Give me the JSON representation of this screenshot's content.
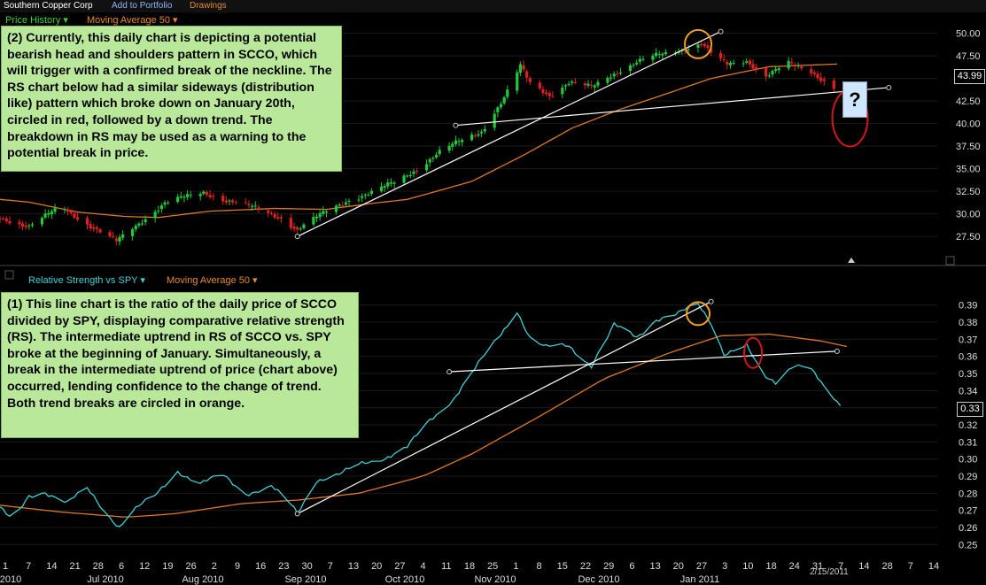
{
  "topbar": {
    "symbol_name": "Southern Copper Corp",
    "add_to_portfolio": "Add to Portfolio",
    "drawings": "Drawings"
  },
  "colors": {
    "bg": "#000000",
    "up_candle": "#22c83a",
    "down_candle": "#e02020",
    "ma": "#e07820",
    "rs_line": "#3fd0d6",
    "trendline": "#ffffff",
    "note_bg": "#b9e89a",
    "circle_orange": "#f0a020",
    "circle_red": "#d01818"
  },
  "upper_panel": {
    "legend_price": "Price History",
    "legend_ma": "Moving Average 50",
    "last_price": "43.99",
    "question_mark": "?",
    "note": "(2)  Currently, this daily chart is depicting a potential bearish head and shoulders pattern in SCCO, which will trigger with a confirmed break of the neckline. The RS chart below had a similar sideways (distribution like) pattern which broke down on January 20th, circled in red, followed by a down trend. The breakdown in RS may be used as a  warning to the potential break in price."
  },
  "lower_panel": {
    "legend_rs": "Relative Strength vs SPY",
    "legend_ma": "Moving Average 50",
    "last_value": "0.33",
    "note": "(1)  This line chart is the ratio of the daily price of SCCO divided by SPY, displaying comparative relative strength (RS). The intermediate uptrend in RS of SCCO vs. SPY broke at the beginning of January. Simultaneously, a break in the intermediate uptrend of price (chart above) occurred, lending confidence to the change of trend. Both trend breaks are circled in orange."
  },
  "x_axis": {
    "last_date_label": "2/15/2011",
    "day_ticks": [
      "1",
      "7",
      "14",
      "21",
      "28",
      "6",
      "12",
      "19",
      "26",
      "2",
      "9",
      "16",
      "23",
      "30",
      "7",
      "13",
      "20",
      "27",
      "4",
      "11",
      "18",
      "25",
      "1",
      "8",
      "15",
      "22",
      "29",
      "6",
      "13",
      "20",
      "27",
      "3",
      "10",
      "18",
      "24",
      "31",
      "7",
      "14",
      "28",
      "7",
      "14"
    ],
    "month_labels": [
      "2010",
      "Jul 2010",
      "Aug 2010",
      "Sep 2010",
      "Oct 2010",
      "Nov 2010",
      "Dec 2010",
      "Jan 2011"
    ]
  },
  "chart_data": [
    {
      "type": "candlestick",
      "title": "Price History",
      "y_ticks": [
        "50.00",
        "47.50",
        "45.00",
        "42.50",
        "40.00",
        "37.50",
        "35.00",
        "32.50",
        "30.00",
        "27.50"
      ],
      "ylim": [
        25.75,
        50.75
      ],
      "x_range": [
        "2010-06-01",
        "2011-03-18"
      ],
      "series": [
        {
          "name": "Price History",
          "type": "candlestick",
          "anchors_close": [
            [
              "2010-06-01",
              29.6
            ],
            [
              "2010-06-10",
              28.6
            ],
            [
              "2010-06-20",
              30.8
            ],
            [
              "2010-07-01",
              28.2
            ],
            [
              "2010-07-07",
              26.9
            ],
            [
              "2010-07-14",
              29.0
            ],
            [
              "2010-07-22",
              31.2
            ],
            [
              "2010-08-03",
              32.4
            ],
            [
              "2010-08-10",
              31.5
            ],
            [
              "2010-08-20",
              30.5
            ],
            [
              "2010-08-27",
              29.6
            ],
            [
              "2010-09-01",
              28.2
            ],
            [
              "2010-09-10",
              30.3
            ],
            [
              "2010-09-17",
              31.6
            ],
            [
              "2010-09-24",
              32.3
            ],
            [
              "2010-10-01",
              33.5
            ],
            [
              "2010-10-08",
              35.0
            ],
            [
              "2010-10-15",
              36.8
            ],
            [
              "2010-10-21",
              38.0
            ],
            [
              "2010-10-28",
              39.2
            ],
            [
              "2010-11-04",
              42.8
            ],
            [
              "2010-11-09",
              46.3
            ],
            [
              "2010-11-12",
              44.5
            ],
            [
              "2010-11-18",
              43.2
            ],
            [
              "2010-11-24",
              44.5
            ],
            [
              "2010-12-01",
              44.0
            ],
            [
              "2010-12-08",
              45.6
            ],
            [
              "2010-12-15",
              46.8
            ],
            [
              "2010-12-22",
              47.6
            ],
            [
              "2010-12-29",
              48.2
            ],
            [
              "2011-01-04",
              48.9
            ],
            [
              "2011-01-08",
              47.4
            ],
            [
              "2011-01-12",
              46.5
            ],
            [
              "2011-01-18",
              47.0
            ],
            [
              "2011-01-24",
              45.3
            ],
            [
              "2011-01-31",
              46.6
            ],
            [
              "2011-02-07",
              45.8
            ],
            [
              "2011-02-14",
              44.0
            ]
          ]
        },
        {
          "name": "Moving Average 50",
          "type": "line",
          "anchors": [
            [
              "2010-06-01",
              31.6
            ],
            [
              "2010-06-10",
              31.3
            ],
            [
              "2010-06-25",
              30.2
            ],
            [
              "2010-07-10",
              29.7
            ],
            [
              "2010-07-20",
              29.6
            ],
            [
              "2010-08-05",
              30.3
            ],
            [
              "2010-08-25",
              30.6
            ],
            [
              "2010-09-10",
              30.5
            ],
            [
              "2010-09-25",
              31.2
            ],
            [
              "2010-10-05",
              31.6
            ],
            [
              "2010-10-25",
              33.6
            ],
            [
              "2010-11-10",
              36.5
            ],
            [
              "2010-11-25",
              39.5
            ],
            [
              "2010-12-10",
              41.6
            ],
            [
              "2010-12-25",
              43.4
            ],
            [
              "2011-01-07",
              45.0
            ],
            [
              "2011-01-25",
              46.3
            ],
            [
              "2011-02-15",
              46.6
            ]
          ]
        }
      ],
      "trendlines": [
        {
          "from": [
            "2010-09-01",
            27.5
          ],
          "to": [
            "2011-01-10",
            50.2
          ]
        },
        {
          "from": [
            "2010-10-20",
            39.8
          ],
          "to": [
            "2011-03-03",
            43.99
          ]
        }
      ],
      "annotations": [
        {
          "shape": "circle",
          "color": "orange",
          "at": [
            "2011-01-03",
            48.8
          ]
        },
        {
          "shape": "circle",
          "color": "red",
          "at": [
            "2011-02-19",
            40.6
          ]
        }
      ]
    },
    {
      "type": "line",
      "title": "Relative Strength vs SPY",
      "y_ticks": [
        "0.39",
        "0.38",
        "0.37",
        "0.36",
        "0.35",
        "0.34",
        "0.33",
        "0.32",
        "0.31",
        "0.30",
        "0.29",
        "0.28",
        "0.27",
        "0.26",
        "0.25"
      ],
      "ylim": [
        0.245,
        0.395
      ],
      "x_range": [
        "2010-06-01",
        "2011-03-18"
      ],
      "series": [
        {
          "name": "Relative Strength vs SPY",
          "anchors": [
            [
              "2010-06-01",
              0.272
            ],
            [
              "2010-06-05",
              0.263
            ],
            [
              "2010-06-10",
              0.278
            ],
            [
              "2010-06-15",
              0.281
            ],
            [
              "2010-06-22",
              0.275
            ],
            [
              "2010-06-28",
              0.282
            ],
            [
              "2010-07-05",
              0.266
            ],
            [
              "2010-07-08",
              0.261
            ],
            [
              "2010-07-12",
              0.27
            ],
            [
              "2010-07-19",
              0.278
            ],
            [
              "2010-07-26",
              0.293
            ],
            [
              "2010-08-02",
              0.286
            ],
            [
              "2010-08-09",
              0.29
            ],
            [
              "2010-08-16",
              0.28
            ],
            [
              "2010-08-24",
              0.284
            ],
            [
              "2010-08-30",
              0.273
            ],
            [
              "2010-09-01",
              0.268
            ],
            [
              "2010-09-07",
              0.288
            ],
            [
              "2010-09-14",
              0.291
            ],
            [
              "2010-09-21",
              0.297
            ],
            [
              "2010-09-28",
              0.301
            ],
            [
              "2010-10-05",
              0.307
            ],
            [
              "2010-10-12",
              0.322
            ],
            [
              "2010-10-19",
              0.335
            ],
            [
              "2010-10-26",
              0.353
            ],
            [
              "2010-11-02",
              0.37
            ],
            [
              "2010-11-08",
              0.387
            ],
            [
              "2010-11-12",
              0.371
            ],
            [
              "2010-11-17",
              0.365
            ],
            [
              "2010-11-24",
              0.366
            ],
            [
              "2010-12-01",
              0.355
            ],
            [
              "2010-12-08",
              0.378
            ],
            [
              "2010-12-15",
              0.371
            ],
            [
              "2010-12-21",
              0.382
            ],
            [
              "2010-12-28",
              0.385
            ],
            [
              "2011-01-03",
              0.39
            ],
            [
              "2011-01-07",
              0.38
            ],
            [
              "2011-01-11",
              0.362
            ],
            [
              "2011-01-18",
              0.366
            ],
            [
              "2011-01-23",
              0.348
            ],
            [
              "2011-01-27",
              0.345
            ],
            [
              "2011-02-01",
              0.355
            ],
            [
              "2011-02-06",
              0.355
            ],
            [
              "2011-02-11",
              0.341
            ],
            [
              "2011-02-16",
              0.331
            ]
          ]
        },
        {
          "name": "Moving Average 50",
          "anchors": [
            [
              "2010-06-01",
              0.273
            ],
            [
              "2010-06-20",
              0.269
            ],
            [
              "2010-07-10",
              0.266
            ],
            [
              "2010-07-25",
              0.268
            ],
            [
              "2010-08-15",
              0.274
            ],
            [
              "2010-09-01",
              0.276
            ],
            [
              "2010-09-20",
              0.28
            ],
            [
              "2010-10-10",
              0.29
            ],
            [
              "2010-10-25",
              0.303
            ],
            [
              "2010-11-15",
              0.325
            ],
            [
              "2010-12-05",
              0.347
            ],
            [
              "2010-12-25",
              0.362
            ],
            [
              "2011-01-10",
              0.372
            ],
            [
              "2011-01-25",
              0.373
            ],
            [
              "2011-02-10",
              0.369
            ],
            [
              "2011-02-20",
              0.365
            ]
          ]
        }
      ],
      "trendlines": [
        {
          "from": [
            "2010-09-01",
            0.268
          ],
          "to": [
            "2011-01-07",
            0.392
          ]
        },
        {
          "from": [
            "2010-10-18",
            0.351
          ],
          "to": [
            "2011-02-15",
            0.363
          ]
        }
      ],
      "annotations": [
        {
          "shape": "circle",
          "color": "orange",
          "at": [
            "2011-01-03",
            0.385
          ]
        },
        {
          "shape": "circle",
          "color": "red",
          "at": [
            "2011-01-20",
            0.362
          ]
        }
      ]
    }
  ]
}
